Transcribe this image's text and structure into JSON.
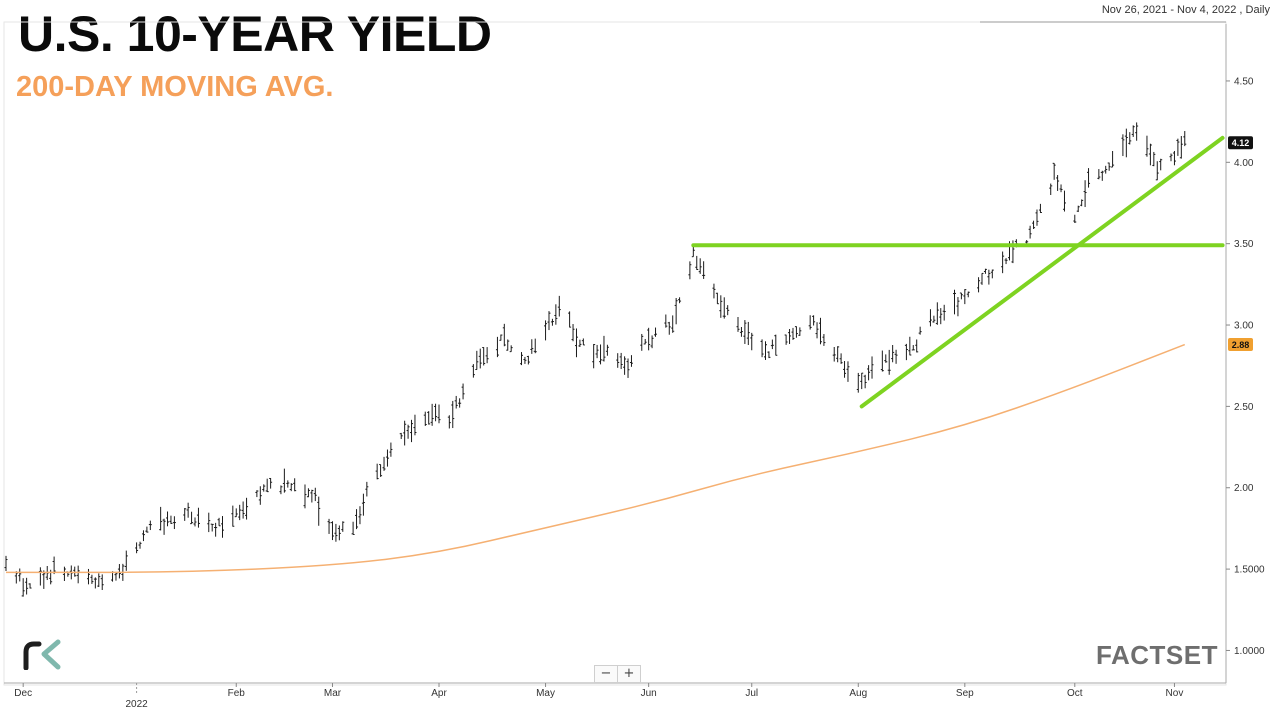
{
  "header": {
    "title": "U.S. 10-YEAR YIELD",
    "subtitle": "200-DAY MOVING AVG.",
    "date_range": "Nov 26, 2021 - Nov 4, 2022 , Daily"
  },
  "branding": {
    "left_logo": "rk",
    "right_logo": "FACTSET"
  },
  "controls": {
    "zoom_out": "−",
    "zoom_in": "+"
  },
  "colors": {
    "bars": "#1a1a1a",
    "moving_average": "#f5b072",
    "trendlines": "#7ed321",
    "last_price_badge": "#111111",
    "ma_badge": "#f0a030"
  },
  "chart_data": {
    "type": "ohlc-bar",
    "x_range": [
      "2021-11-26",
      "2022-11-04"
    ],
    "y_range": [
      0.8,
      4.85
    ],
    "y_axis_ticks": [
      {
        "value": 1.0,
        "label": "1.0000"
      },
      {
        "value": 1.5,
        "label": "1.5000"
      },
      {
        "value": 2.0,
        "label": "2.00"
      },
      {
        "value": 2.5,
        "label": "2.50"
      },
      {
        "value": 3.0,
        "label": "3.00"
      },
      {
        "value": 3.5,
        "label": "3.50"
      },
      {
        "value": 4.0,
        "label": "4.00"
      },
      {
        "value": 4.5,
        "label": "4.50"
      }
    ],
    "x_axis_ticks": [
      {
        "date": "2021-12-01",
        "label": "Dec"
      },
      {
        "date": "2022-01-03",
        "label": "2022",
        "year": true
      },
      {
        "date": "2022-02-01",
        "label": "Feb"
      },
      {
        "date": "2022-03-01",
        "label": "Mar"
      },
      {
        "date": "2022-04-01",
        "label": "Apr"
      },
      {
        "date": "2022-05-02",
        "label": "May"
      },
      {
        "date": "2022-06-01",
        "label": "Jun"
      },
      {
        "date": "2022-07-01",
        "label": "Jul"
      },
      {
        "date": "2022-08-01",
        "label": "Aug"
      },
      {
        "date": "2022-09-01",
        "label": "Sep"
      },
      {
        "date": "2022-10-03",
        "label": "Oct"
      },
      {
        "date": "2022-11-01",
        "label": "Nov"
      }
    ],
    "price_path": [
      [
        "2021-11-26",
        1.52
      ],
      [
        "2021-12-03",
        1.38
      ],
      [
        "2021-12-10",
        1.49
      ],
      [
        "2021-12-20",
        1.43
      ],
      [
        "2021-12-30",
        1.49
      ],
      [
        "2022-01-05",
        1.7
      ],
      [
        "2022-01-10",
        1.78
      ],
      [
        "2022-01-18",
        1.85
      ],
      [
        "2022-01-24",
        1.75
      ],
      [
        "2022-01-28",
        1.78
      ],
      [
        "2022-02-04",
        1.9
      ],
      [
        "2022-02-10",
        2.0
      ],
      [
        "2022-02-15",
        2.02
      ],
      [
        "2022-02-24",
        1.93
      ],
      [
        "2022-03-01",
        1.72
      ],
      [
        "2022-03-07",
        1.76
      ],
      [
        "2022-03-14",
        2.1
      ],
      [
        "2022-03-21",
        2.3
      ],
      [
        "2022-03-28",
        2.45
      ],
      [
        "2022-04-04",
        2.42
      ],
      [
        "2022-04-12",
        2.75
      ],
      [
        "2022-04-19",
        2.92
      ],
      [
        "2022-04-26",
        2.79
      ],
      [
        "2022-05-06",
        3.1
      ],
      [
        "2022-05-12",
        2.88
      ],
      [
        "2022-05-20",
        2.82
      ],
      [
        "2022-05-26",
        2.75
      ],
      [
        "2022-06-01",
        2.92
      ],
      [
        "2022-06-08",
        3.02
      ],
      [
        "2022-06-14",
        3.43
      ],
      [
        "2022-06-17",
        3.3
      ],
      [
        "2022-06-23",
        3.1
      ],
      [
        "2022-07-01",
        2.9
      ],
      [
        "2022-07-06",
        2.82
      ],
      [
        "2022-07-12",
        2.95
      ],
      [
        "2022-07-19",
        3.0
      ],
      [
        "2022-07-27",
        2.8
      ],
      [
        "2022-08-01",
        2.62
      ],
      [
        "2022-08-08",
        2.78
      ],
      [
        "2022-08-15",
        2.82
      ],
      [
        "2022-08-22",
        3.02
      ],
      [
        "2022-08-30",
        3.12
      ],
      [
        "2022-09-06",
        3.28
      ],
      [
        "2022-09-13",
        3.42
      ],
      [
        "2022-09-20",
        3.55
      ],
      [
        "2022-09-27",
        3.9
      ],
      [
        "2022-10-03",
        3.65
      ],
      [
        "2022-10-07",
        3.88
      ],
      [
        "2022-10-14",
        4.0
      ],
      [
        "2022-10-21",
        4.22
      ],
      [
        "2022-10-27",
        3.95
      ],
      [
        "2022-11-01",
        4.04
      ],
      [
        "2022-11-04",
        4.15
      ]
    ],
    "moving_average_200d": [
      [
        "2021-11-26",
        1.48
      ],
      [
        "2022-01-15",
        1.48
      ],
      [
        "2022-03-01",
        1.52
      ],
      [
        "2022-04-01",
        1.6
      ],
      [
        "2022-05-01",
        1.75
      ],
      [
        "2022-06-01",
        1.9
      ],
      [
        "2022-07-01",
        2.08
      ],
      [
        "2022-08-01",
        2.22
      ],
      [
        "2022-09-01",
        2.38
      ],
      [
        "2022-10-01",
        2.6
      ],
      [
        "2022-11-04",
        2.88
      ]
    ],
    "trendlines": [
      {
        "kind": "horizontal-resistance",
        "from": [
          "2022-06-14",
          3.49
        ],
        "to": [
          "2022-11-15",
          3.49
        ]
      },
      {
        "kind": "rising-support",
        "from": [
          "2022-08-02",
          2.5
        ],
        "to": [
          "2022-11-15",
          4.15
        ]
      }
    ],
    "last_price": {
      "value": 4.12,
      "label": "4.12"
    },
    "moving_average_last": {
      "value": 2.88,
      "label": "2.88"
    }
  }
}
